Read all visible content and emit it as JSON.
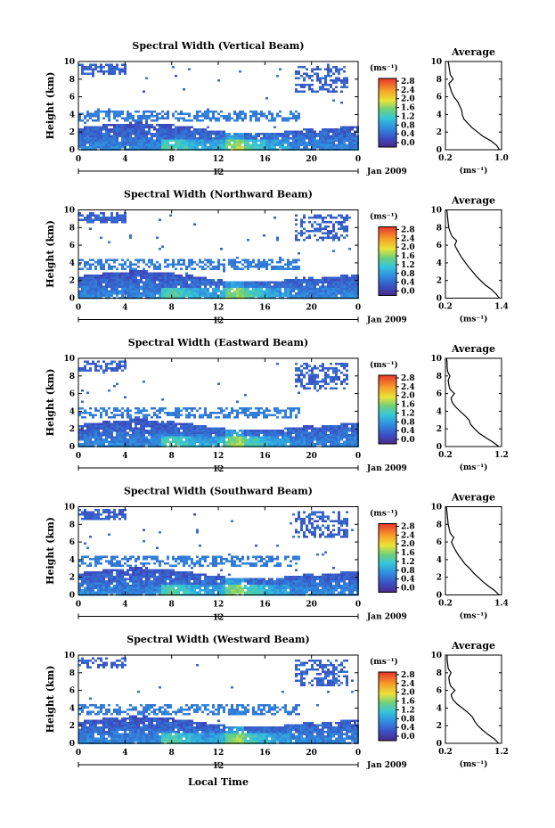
{
  "chart_data": [
    {
      "type": "heatmap",
      "title": "Spectral Width (Vertical Beam)",
      "ylabel": "Height (km)",
      "xticks": [
        "0",
        "4",
        "8",
        "12",
        "16",
        "20",
        "0"
      ],
      "yticks": [
        "0",
        "2",
        "4",
        "6",
        "8",
        "10"
      ],
      "xlim": [
        0,
        24
      ],
      "ylim": [
        0,
        10
      ],
      "day_marker": "12",
      "date_label": "Jan 2009",
      "colorbar": {
        "unit": "(ms⁻¹)",
        "ticks": [
          "0.0",
          "0.4",
          "0.8",
          "1.2",
          "1.6",
          "2.0",
          "2.4",
          "2.8"
        ],
        "range": [
          0,
          2.8
        ]
      },
      "average": {
        "title": "Average",
        "xlabel": "(ms⁻¹)",
        "xticks": [
          "0.2",
          "1.0"
        ],
        "xlim": [
          0.2,
          1.0
        ],
        "x": [
          0.97,
          0.93,
          0.85,
          0.74,
          0.66,
          0.58,
          0.52,
          0.46,
          0.44,
          0.43,
          0.4,
          0.37,
          0.32,
          0.29,
          0.27,
          0.25,
          0.31,
          0.27,
          0.26,
          0.25,
          0.24
        ],
        "y": [
          0.0,
          0.5,
          1.0,
          1.5,
          2.0,
          2.5,
          3.0,
          3.5,
          4.0,
          4.5,
          5.0,
          5.5,
          6.0,
          6.5,
          7.0,
          7.5,
          8.0,
          8.5,
          9.0,
          9.5,
          10.0
        ]
      }
    },
    {
      "type": "heatmap",
      "title": "Spectral Width (Northward Beam)",
      "ylabel": "Height (km)",
      "xticks": [
        "0",
        "4",
        "8",
        "12",
        "16",
        "20",
        "0"
      ],
      "yticks": [
        "0",
        "2",
        "4",
        "6",
        "8",
        "10"
      ],
      "xlim": [
        0,
        24
      ],
      "ylim": [
        0,
        10
      ],
      "day_marker": "12",
      "date_label": "Jan 2009",
      "colorbar": {
        "unit": "(ms⁻¹)",
        "ticks": [
          "0.0",
          "0.4",
          "0.8",
          "1.2",
          "1.6",
          "2.0",
          "2.4",
          "2.8"
        ],
        "range": [
          0,
          2.8
        ]
      },
      "average": {
        "title": "Average",
        "xlabel": "(ms⁻¹)",
        "xticks": [
          "0.2",
          "1.4"
        ],
        "xlim": [
          0.2,
          1.4
        ],
        "x": [
          1.35,
          1.28,
          1.18,
          1.05,
          0.95,
          0.86,
          0.78,
          0.7,
          0.63,
          0.56,
          0.5,
          0.45,
          0.4,
          0.44,
          0.34,
          0.3,
          0.27,
          0.26,
          0.25,
          0.24,
          0.23
        ],
        "y": [
          0.0,
          0.5,
          1.0,
          1.5,
          2.0,
          2.5,
          3.0,
          3.5,
          4.0,
          4.5,
          5.0,
          5.5,
          6.0,
          6.5,
          7.0,
          7.5,
          8.0,
          8.5,
          9.0,
          9.5,
          10.0
        ]
      }
    },
    {
      "type": "heatmap",
      "title": "Spectral Width (Eastward Beam)",
      "ylabel": "Height (km)",
      "xticks": [
        "0",
        "4",
        "8",
        "12",
        "16",
        "20",
        "0"
      ],
      "yticks": [
        "0",
        "2",
        "4",
        "6",
        "8",
        "10"
      ],
      "xlim": [
        0,
        24
      ],
      "ylim": [
        0,
        10
      ],
      "day_marker": "12",
      "date_label": "Jan 2009",
      "colorbar": {
        "unit": "(ms⁻¹)",
        "ticks": [
          "0.0",
          "0.4",
          "0.8",
          "1.2",
          "1.6",
          "2.0",
          "2.4",
          "2.8"
        ],
        "range": [
          0,
          2.8
        ]
      },
      "average": {
        "title": "Average",
        "xlabel": "(ms⁻¹)",
        "xticks": [
          "0.2",
          "1.2"
        ],
        "xlim": [
          0.2,
          1.2
        ],
        "x": [
          1.15,
          1.05,
          0.92,
          0.8,
          0.72,
          0.65,
          0.62,
          0.55,
          0.46,
          0.38,
          0.32,
          0.3,
          0.36,
          0.28,
          0.26,
          0.25,
          0.28,
          0.24,
          0.23,
          0.23,
          0.22
        ],
        "y": [
          0.0,
          0.5,
          1.0,
          1.5,
          2.0,
          2.5,
          3.0,
          3.5,
          4.0,
          4.5,
          5.0,
          5.5,
          6.0,
          6.5,
          7.0,
          7.5,
          8.0,
          8.5,
          9.0,
          9.5,
          10.0
        ]
      }
    },
    {
      "type": "heatmap",
      "title": "Spectral Width (Southward Beam)",
      "ylabel": "Height (km)",
      "xticks": [
        "0",
        "4",
        "8",
        "12",
        "16",
        "20",
        "0"
      ],
      "yticks": [
        "0",
        "2",
        "4",
        "6",
        "8",
        "10"
      ],
      "xlim": [
        0,
        24
      ],
      "ylim": [
        0,
        10
      ],
      "day_marker": "12",
      "date_label": "Jan 2009",
      "colorbar": {
        "unit": "(ms⁻¹)",
        "ticks": [
          "0.0",
          "0.4",
          "0.8",
          "1.2",
          "1.6",
          "2.0",
          "2.4",
          "2.8"
        ],
        "range": [
          0,
          2.8
        ]
      },
      "average": {
        "title": "Average",
        "xlabel": "(ms⁻¹)",
        "xticks": [
          "0.2",
          "1.4"
        ],
        "xlim": [
          0.2,
          1.4
        ],
        "x": [
          1.35,
          1.25,
          1.12,
          1.0,
          0.9,
          0.8,
          0.72,
          0.62,
          0.55,
          0.48,
          0.42,
          0.37,
          0.33,
          0.38,
          0.3,
          0.28,
          0.26,
          0.25,
          0.24,
          0.23,
          0.22
        ],
        "y": [
          0.0,
          0.5,
          1.0,
          1.5,
          2.0,
          2.5,
          3.0,
          3.5,
          4.0,
          4.5,
          5.0,
          5.5,
          6.0,
          6.5,
          7.0,
          7.5,
          8.0,
          8.5,
          9.0,
          9.5,
          10.0
        ]
      }
    },
    {
      "type": "heatmap",
      "title": "Spectral Width (Westward Beam)",
      "ylabel": "Height (km)",
      "xticks": [
        "0",
        "4",
        "8",
        "12",
        "16",
        "20",
        "0"
      ],
      "yticks": [
        "0",
        "2",
        "4",
        "6",
        "8",
        "10"
      ],
      "xlim": [
        0,
        24
      ],
      "ylim": [
        0,
        10
      ],
      "day_marker": "12",
      "date_label": "Jan 2009",
      "xlabel": "Local Time",
      "colorbar": {
        "unit": "(ms⁻¹)",
        "ticks": [
          "0.0",
          "0.4",
          "0.8",
          "1.2",
          "1.6",
          "2.0",
          "2.4",
          "2.8"
        ],
        "range": [
          0,
          2.8
        ]
      },
      "average": {
        "title": "Average",
        "xlabel": "(ms⁻¹)",
        "xticks": [
          "0.2",
          "1.2"
        ],
        "xlim": [
          0.2,
          1.2
        ],
        "x": [
          1.15,
          1.07,
          0.96,
          0.86,
          0.78,
          0.72,
          0.68,
          0.6,
          0.5,
          0.4,
          0.33,
          0.3,
          0.37,
          0.29,
          0.27,
          0.26,
          0.3,
          0.25,
          0.24,
          0.23,
          0.23
        ],
        "y": [
          0.0,
          0.5,
          1.0,
          1.5,
          2.0,
          2.5,
          3.0,
          3.5,
          4.0,
          4.5,
          5.0,
          5.5,
          6.0,
          6.5,
          7.0,
          7.5,
          8.0,
          8.5,
          9.0,
          9.5,
          10.0
        ]
      }
    }
  ]
}
